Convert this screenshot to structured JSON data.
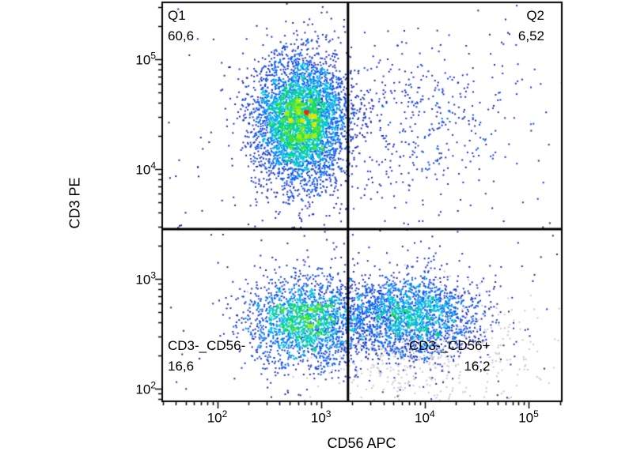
{
  "chart_data": {
    "type": "scatter",
    "subtype": "flow-cytometry-density-dot-plot",
    "title": "",
    "xlabel": "CD56 APC",
    "ylabel": "CD3 PE",
    "x_scale": "log",
    "y_scale": "log",
    "x_log_range": [
      1.47,
      5.32
    ],
    "y_log_range": [
      1.885,
      5.518
    ],
    "x_ticks": [
      {
        "log": 2,
        "base": "10",
        "exp": "2"
      },
      {
        "log": 3,
        "base": "10",
        "exp": "3"
      },
      {
        "log": 4,
        "base": "10",
        "exp": "4"
      },
      {
        "log": 5,
        "base": "10",
        "exp": "5"
      }
    ],
    "y_ticks": [
      {
        "log": 2,
        "base": "10",
        "exp": "2"
      },
      {
        "log": 3,
        "base": "10",
        "exp": "3"
      },
      {
        "log": 4,
        "base": "10",
        "exp": "4"
      },
      {
        "log": 5,
        "base": "10",
        "exp": "5"
      }
    ],
    "quadrant_gate": {
      "x_log": 3.26,
      "y_log": 3.453
    },
    "quadrants": [
      {
        "id": "Q1",
        "label": "Q1",
        "value": "60,6",
        "position": "upper-left"
      },
      {
        "id": "Q2",
        "label": "Q2",
        "value": "6,52",
        "position": "upper-right"
      },
      {
        "id": "Q3",
        "label": "CD3-_CD56-",
        "value": "16,6",
        "position": "lower-left"
      },
      {
        "id": "Q4",
        "label": "CD3-_CD56+",
        "value": "16,2",
        "position": "lower-right"
      }
    ],
    "populations": [
      {
        "name": "background-scatter",
        "render": "uniform",
        "n": 260,
        "color": "#23238f"
      },
      {
        "name": "debris-gray",
        "render": "fixed",
        "cx": 3.95,
        "cy": 2.34,
        "sx": 0.58,
        "sy": 0.28,
        "n": 620,
        "color": "#c9c9c9"
      },
      {
        "name": "cd3neg-cd56pos-nk",
        "render": "density",
        "cx": 3.87,
        "cy": 2.66,
        "sx": 0.34,
        "sy": 0.19,
        "n": 2100,
        "intensity": 0.62
      },
      {
        "name": "cd3neg-cd56neg",
        "render": "density",
        "cx": 2.87,
        "cy": 2.62,
        "sx": 0.29,
        "sy": 0.2,
        "n": 2100,
        "intensity": 0.78
      },
      {
        "name": "cd3pos-cd56pos",
        "render": "density",
        "cx": 3.88,
        "cy": 4.42,
        "sx": 0.5,
        "sy": 0.36,
        "n": 430,
        "intensity": 0.3
      },
      {
        "name": "cd3pos-t-cells",
        "render": "density",
        "cx": 2.8,
        "cy": 4.43,
        "sx": 0.23,
        "sy": 0.29,
        "n": 4600,
        "intensity": 1.0
      }
    ],
    "colormap": [
      {
        "t": 0.0,
        "color": "#14147a"
      },
      {
        "t": 0.15,
        "color": "#1e32c8"
      },
      {
        "t": 0.3,
        "color": "#0064ff"
      },
      {
        "t": 0.45,
        "color": "#00c8e6"
      },
      {
        "t": 0.58,
        "color": "#00d278"
      },
      {
        "t": 0.7,
        "color": "#50e628"
      },
      {
        "t": 0.8,
        "color": "#b4f000"
      },
      {
        "t": 0.88,
        "color": "#fadc00"
      },
      {
        "t": 0.95,
        "color": "#ff8c00"
      },
      {
        "t": 1.0,
        "color": "#ff1e14"
      }
    ],
    "frame_color": "#000000",
    "gate_line_color": "#000000",
    "background_color": "#ffffff"
  }
}
